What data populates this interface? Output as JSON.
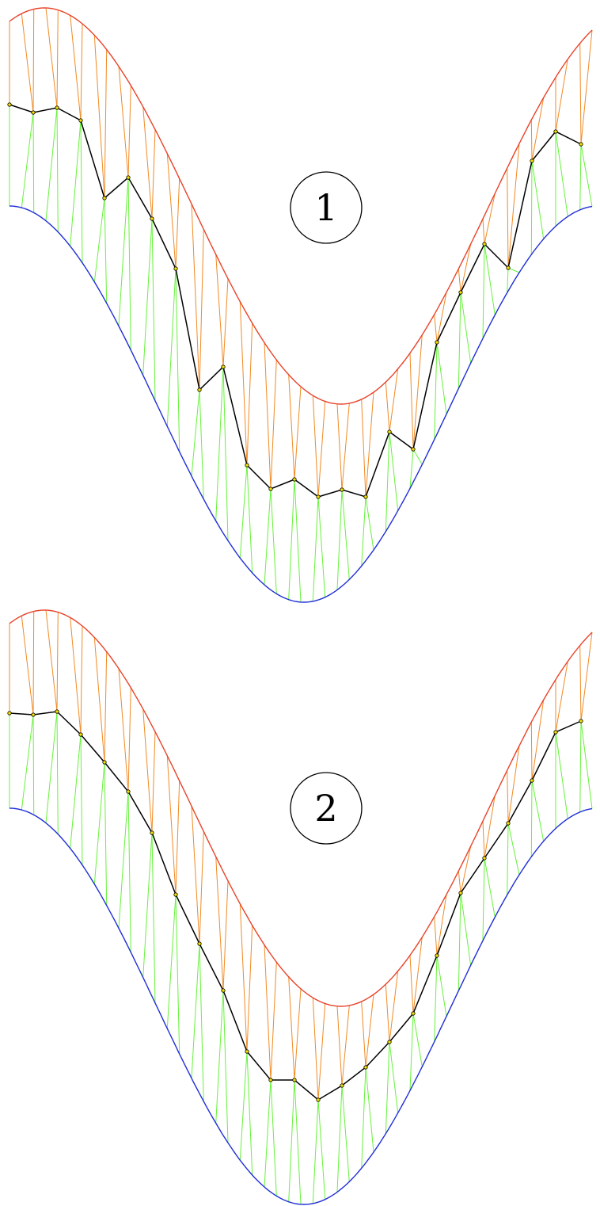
{
  "colors": {
    "upper_curve": "#e8432a",
    "lower_curve": "#1f2fd6",
    "upper_fan_lines": "#f08a24",
    "lower_fan_lines": "#66f23a",
    "middle_polyline": "#000000",
    "vertex_fill": "#f5e000",
    "badge_stroke": "#000000",
    "background": "#ffffff"
  },
  "panels": [
    {
      "label": "1",
      "middle_vertices": [
        [
          12,
          132
        ],
        [
          42,
          142
        ],
        [
          72,
          136
        ],
        [
          102,
          152
        ],
        [
          132,
          250
        ],
        [
          162,
          224
        ],
        [
          192,
          276
        ],
        [
          222,
          339
        ],
        [
          252,
          492
        ],
        [
          282,
          463
        ],
        [
          312,
          587
        ],
        [
          342,
          617
        ],
        [
          372,
          605
        ],
        [
          402,
          627
        ],
        [
          432,
          618
        ],
        [
          462,
          627
        ],
        [
          492,
          545
        ],
        [
          522,
          567
        ],
        [
          552,
          432
        ],
        [
          582,
          369
        ],
        [
          612,
          308
        ],
        [
          642,
          338
        ],
        [
          672,
          203
        ],
        [
          702,
          166
        ],
        [
          734,
          182
        ]
      ]
    },
    {
      "label": "2",
      "middle_vertices": [
        [
          12,
          900
        ],
        [
          42,
          902
        ],
        [
          72,
          898
        ],
        [
          102,
          927
        ],
        [
          132,
          962
        ],
        [
          162,
          999
        ],
        [
          192,
          1051
        ],
        [
          222,
          1129
        ],
        [
          252,
          1191
        ],
        [
          282,
          1250
        ],
        [
          312,
          1327
        ],
        [
          342,
          1363
        ],
        [
          372,
          1363
        ],
        [
          402,
          1388
        ],
        [
          432,
          1370
        ],
        [
          462,
          1347
        ],
        [
          492,
          1315
        ],
        [
          522,
          1279
        ],
        [
          552,
          1206
        ],
        [
          582,
          1127
        ],
        [
          612,
          1083
        ],
        [
          642,
          1039
        ],
        [
          672,
          985
        ],
        [
          702,
          924
        ],
        [
          734,
          910
        ]
      ]
    }
  ]
}
